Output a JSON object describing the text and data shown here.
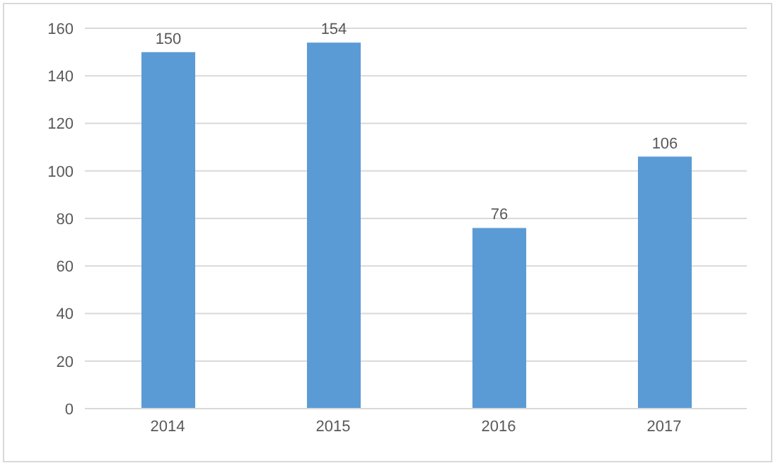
{
  "chart_data": {
    "type": "bar",
    "categories": [
      "2014",
      "2015",
      "2016",
      "2017"
    ],
    "values": [
      150,
      154,
      76,
      106
    ],
    "color": "#5b9bd5",
    "ylim": [
      0,
      160
    ],
    "yticks": [
      0,
      20,
      40,
      60,
      80,
      100,
      120,
      140,
      160
    ],
    "grid": "y",
    "data_labels": true
  }
}
